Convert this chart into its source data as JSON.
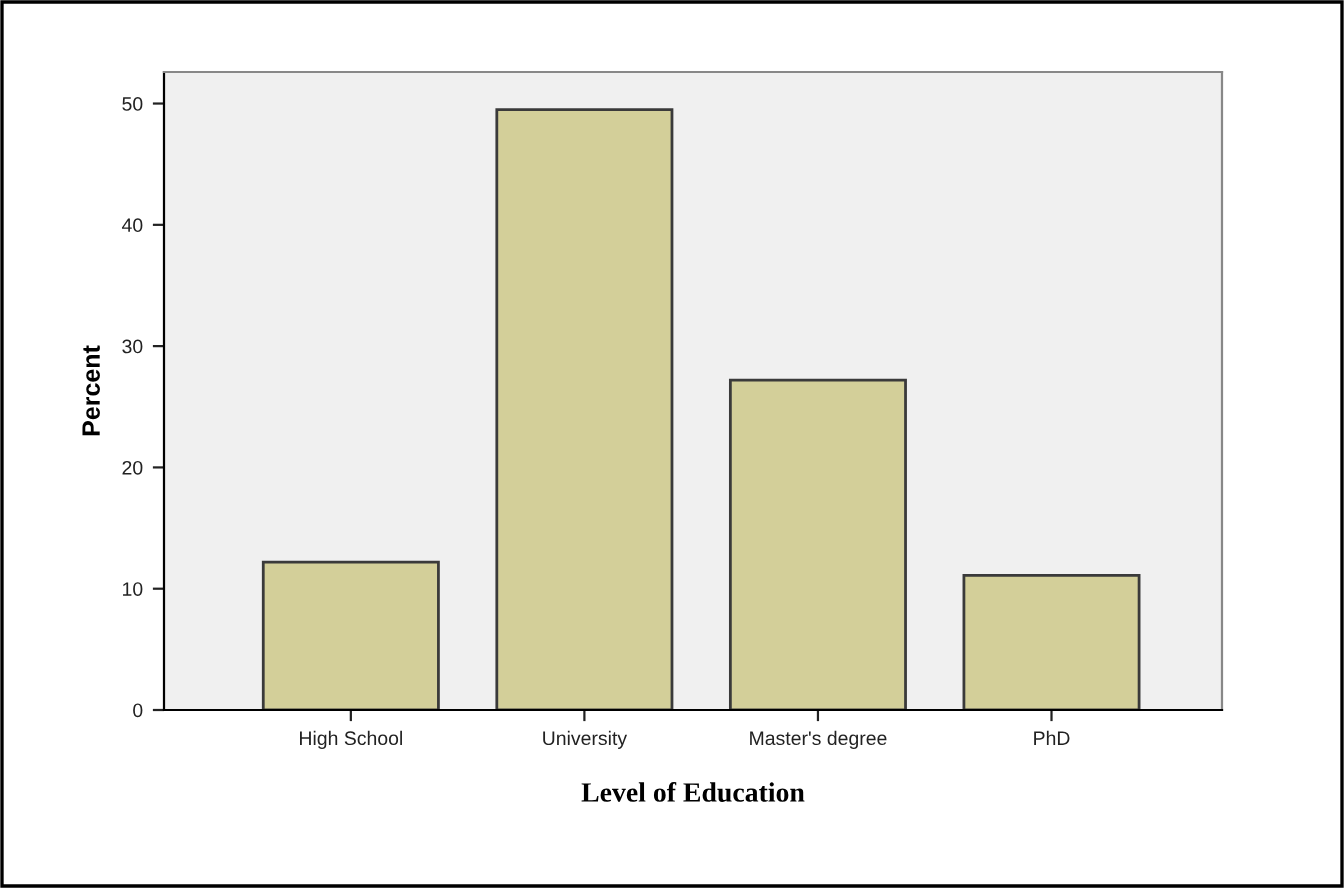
{
  "chart_data": {
    "type": "bar",
    "xlabel": "Level of Education",
    "ylabel": "Percent",
    "categories": [
      "High School",
      "University",
      "Master's degree",
      "PhD"
    ],
    "values": [
      12.2,
      49.5,
      27.2,
      11.1
    ],
    "color": "#d3cf99",
    "ylim": [
      0,
      52.6
    ],
    "yticks": [
      0,
      10,
      20,
      30,
      40,
      50
    ],
    "grid": false,
    "legend": false
  }
}
